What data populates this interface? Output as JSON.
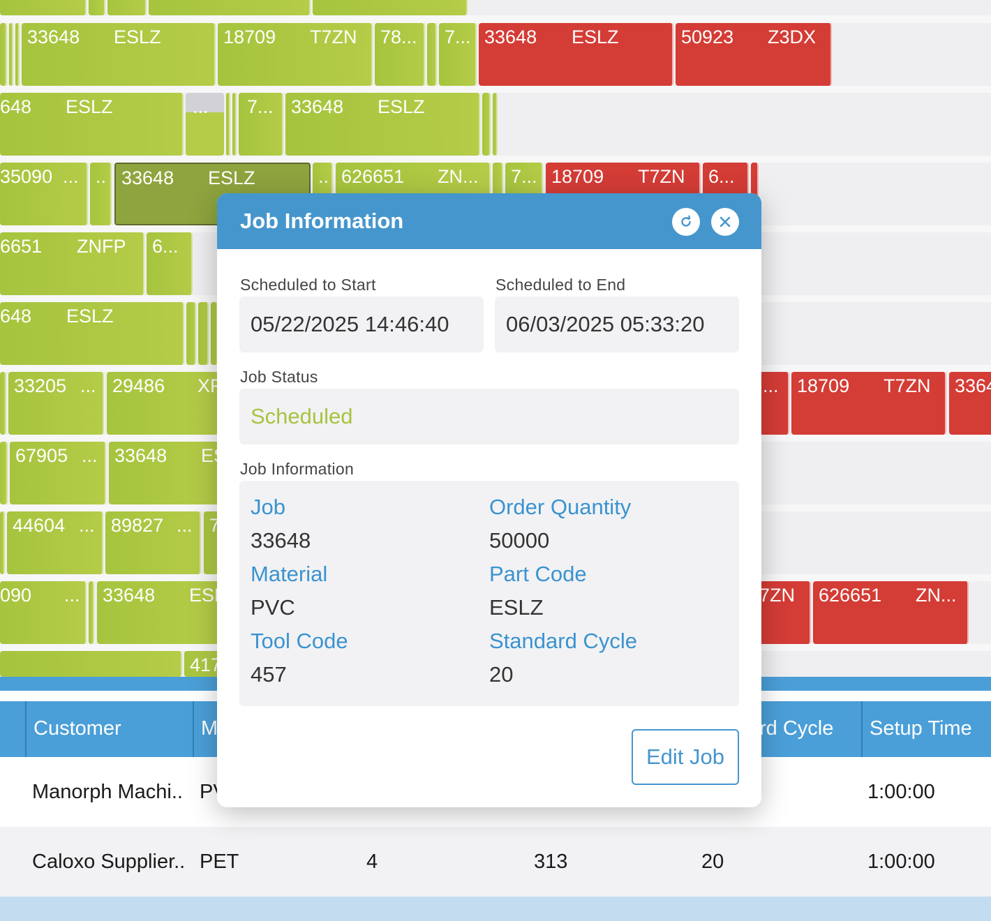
{
  "gantt": {
    "rows": [
      {
        "bars": [
          {
            "color": "green",
            "text1": "33648",
            "text2": "ESLZ"
          },
          {
            "color": "green",
            "text1": "18709",
            "text2": "T7ZN"
          },
          {
            "color": "green",
            "text1": "78...",
            "text2": ""
          },
          {
            "color": "green",
            "text1": "7...",
            "text2": ""
          },
          {
            "color": "red",
            "text1": "33648",
            "text2": "ESLZ"
          },
          {
            "color": "red",
            "text1": "50923",
            "text2": "Z3DX"
          }
        ]
      },
      {
        "bars": [
          {
            "color": "green",
            "text1": "648",
            "text2": "ESLZ"
          },
          {
            "color": "gray",
            "text1": "...",
            "text2": ""
          },
          {
            "color": "green",
            "text1": "7...",
            "text2": ""
          },
          {
            "color": "green",
            "text1": "33648",
            "text2": "ESLZ"
          }
        ]
      },
      {
        "bars": [
          {
            "color": "green",
            "text1": "35090",
            "text2": "..."
          },
          {
            "color": "green",
            "text1": "..",
            "text2": ""
          },
          {
            "color": "selected",
            "text1": "33648",
            "text2": "ESLZ"
          },
          {
            "color": "green",
            "text1": "..",
            "text2": ""
          },
          {
            "color": "green",
            "text1": "626651",
            "text2": "ZN..."
          },
          {
            "color": "green",
            "text1": "7...",
            "text2": ""
          },
          {
            "color": "red",
            "text1": "18709",
            "text2": "T7ZN"
          },
          {
            "color": "red",
            "text1": "6...",
            "text2": ""
          }
        ]
      },
      {
        "bars": [
          {
            "color": "green",
            "text1": "6651",
            "text2": "ZNFP"
          },
          {
            "color": "green",
            "text1": "6...",
            "text2": ""
          }
        ]
      },
      {
        "bars": [
          {
            "color": "green",
            "text1": "648",
            "text2": "ESLZ"
          }
        ]
      },
      {
        "bars": [
          {
            "color": "green",
            "text1": "33205",
            "text2": "..."
          },
          {
            "color": "green",
            "text1": "29486",
            "text2": "XF"
          },
          {
            "color": "red",
            "text1": "...",
            "text2": ""
          },
          {
            "color": "red",
            "text1": "18709",
            "text2": "T7ZN"
          },
          {
            "color": "red",
            "text1": "3364",
            "text2": ""
          }
        ]
      },
      {
        "bars": [
          {
            "color": "green",
            "text1": "67905",
            "text2": "..."
          },
          {
            "color": "green",
            "text1": "33648",
            "text2": "ES"
          }
        ]
      },
      {
        "bars": [
          {
            "color": "green",
            "text1": "44604",
            "text2": "..."
          },
          {
            "color": "green",
            "text1": "89827",
            "text2": "..."
          },
          {
            "color": "green",
            "text1": "7",
            "text2": ""
          }
        ]
      },
      {
        "bars": [
          {
            "color": "green",
            "text1": "090",
            "text2": "..."
          },
          {
            "color": "green",
            "text1": "33648",
            "text2": "ESL"
          },
          {
            "color": "red",
            "text1": "7ZN",
            "text2": ""
          },
          {
            "color": "red",
            "text1": "626651",
            "text2": "ZN..."
          }
        ]
      },
      {
        "bars": [
          {
            "color": "green",
            "text1": "417",
            "text2": ""
          }
        ]
      }
    ]
  },
  "table": {
    "headers": [
      "Customer",
      "M",
      "rd Cycle",
      "Setup Time"
    ],
    "rows": [
      {
        "customer": "Manorph Machi..",
        "material": "PV",
        "col3": "",
        "col4": "",
        "cycle": "",
        "setup": "1:00:00"
      },
      {
        "customer": "Caloxo Supplier..",
        "material": "PET",
        "col3": "4",
        "col4": "313",
        "cycle": "20",
        "setup": "1:00:00"
      }
    ]
  },
  "modal": {
    "title": "Job Information",
    "refresh_icon": "refresh-icon",
    "close_icon": "close-icon",
    "start_label": "Scheduled to Start",
    "start_value": "05/22/2025 14:46:40",
    "end_label": "Scheduled to End",
    "end_value": "06/03/2025 05:33:20",
    "status_label": "Job Status",
    "status_value": "Scheduled",
    "status_color": "#a6c43e",
    "info_label": "Job Information",
    "fields": [
      {
        "key": "Job",
        "value": "33648"
      },
      {
        "key": "Order Quantity",
        "value": "50000"
      },
      {
        "key": "Material",
        "value": "PVC"
      },
      {
        "key": "Part Code",
        "value": "ESLZ"
      },
      {
        "key": "Tool Code",
        "value": "457"
      },
      {
        "key": "Standard Cycle",
        "value": "20"
      }
    ],
    "edit_button": "Edit Job"
  }
}
